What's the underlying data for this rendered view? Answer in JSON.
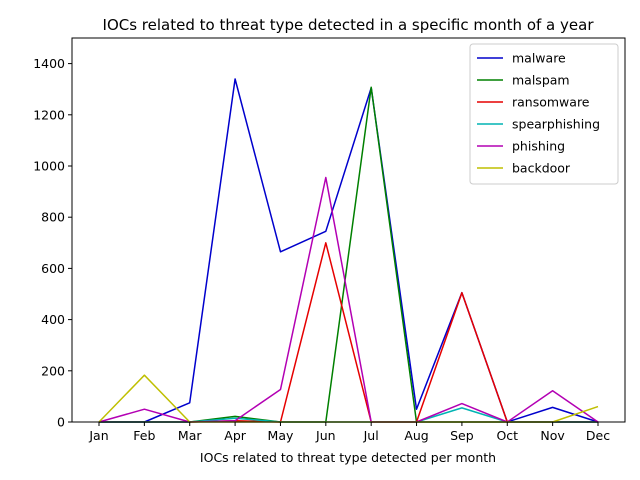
{
  "chart_data": {
    "type": "line",
    "title": "IOCs related to threat type detected in a specific month of a year",
    "xlabel": "IOCs related to threat type detected per month",
    "ylabel": "",
    "categories": [
      "Jan",
      "Feb",
      "Mar",
      "Apr",
      "May",
      "Jun",
      "Jul",
      "Aug",
      "Sep",
      "Oct",
      "Nov",
      "Dec"
    ],
    "ylim": [
      0,
      1500
    ],
    "yticks": [
      0,
      200,
      400,
      600,
      800,
      1000,
      1200,
      1400
    ],
    "grid": false,
    "legend_position": "top-right",
    "series": [
      {
        "name": "malware",
        "color": "#0000cc",
        "values": [
          0,
          0,
          75,
          1340,
          665,
          745,
          1305,
          50,
          505,
          0,
          57,
          0
        ]
      },
      {
        "name": "malspam",
        "color": "#008000",
        "values": [
          0,
          0,
          0,
          22,
          0,
          0,
          1308,
          0,
          0,
          0,
          0,
          0
        ]
      },
      {
        "name": "ransomware",
        "color": "#e60000",
        "values": [
          0,
          0,
          0,
          5,
          0,
          700,
          0,
          0,
          505,
          0,
          0,
          0
        ]
      },
      {
        "name": "spearphishing",
        "color": "#00b3b3",
        "values": [
          0,
          0,
          0,
          15,
          0,
          0,
          0,
          0,
          55,
          0,
          0,
          0
        ]
      },
      {
        "name": "phishing",
        "color": "#b300b3",
        "values": [
          0,
          50,
          0,
          5,
          127,
          955,
          0,
          0,
          72,
          0,
          122,
          0
        ]
      },
      {
        "name": "backdoor",
        "color": "#bfbf00",
        "values": [
          0,
          183,
          0,
          0,
          0,
          0,
          0,
          0,
          0,
          0,
          0,
          60
        ]
      }
    ]
  }
}
